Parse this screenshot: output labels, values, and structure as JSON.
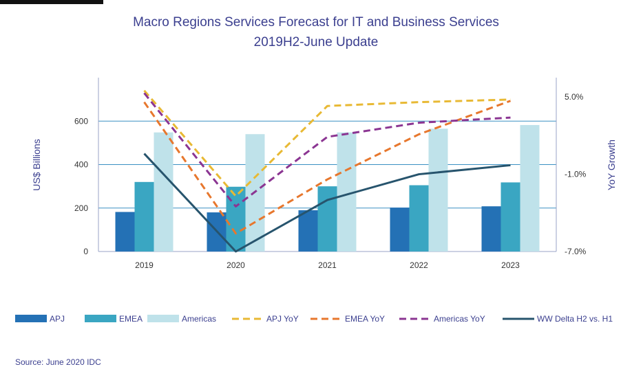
{
  "chart_data": {
    "type": "bar",
    "title": "Macro Regions Services Forecast for IT and Business Services",
    "subtitle": "2019H2-June  Update",
    "ylabel": "US$ Billions",
    "y2label": "YoY Growth",
    "ylim": [
      0,
      800
    ],
    "y2lim": [
      -7.0,
      6.5
    ],
    "yticks": [
      "0",
      "200",
      "400",
      "600"
    ],
    "y2ticks": [
      "5.0%",
      "-1.0%",
      "-7.0%"
    ],
    "categories": [
      "2019",
      "2020",
      "2021",
      "2022",
      "2023"
    ],
    "series": [
      {
        "name": "APJ",
        "kind": "bar",
        "color": "#2471b5",
        "values": [
          182,
          180,
          190,
          202,
          208
        ]
      },
      {
        "name": "EMEA",
        "kind": "bar",
        "color": "#3aa6c2",
        "values": [
          320,
          298,
          300,
          305,
          318
        ]
      },
      {
        "name": "Americas",
        "kind": "bar",
        "color": "#bfe2ea",
        "values": [
          548,
          540,
          548,
          565,
          582
        ]
      },
      {
        "name": "APJ YoY",
        "kind": "line",
        "axis": "y2",
        "dash": true,
        "color": "#e8b934",
        "values": [
          5.5,
          -2.7,
          4.3,
          4.6,
          4.8
        ]
      },
      {
        "name": "EMEA YoY",
        "kind": "line",
        "axis": "y2",
        "dash": true,
        "color": "#e7772d",
        "values": [
          4.6,
          -5.6,
          -1.4,
          2.1,
          4.7
        ]
      },
      {
        "name": "Americas YoY",
        "kind": "line",
        "axis": "y2",
        "dash": true,
        "color": "#8b3592",
        "values": [
          5.3,
          -3.5,
          1.9,
          3.0,
          3.4
        ]
      },
      {
        "name": "WW Delta H2 vs. H1",
        "kind": "line",
        "axis": "y2",
        "dash": false,
        "color": "#27546d",
        "values": [
          0.6,
          -7.0,
          -3.0,
          -1.0,
          -0.3
        ]
      }
    ],
    "grid": true,
    "legend": "bottom"
  },
  "source": "Source: June 2020 IDC"
}
